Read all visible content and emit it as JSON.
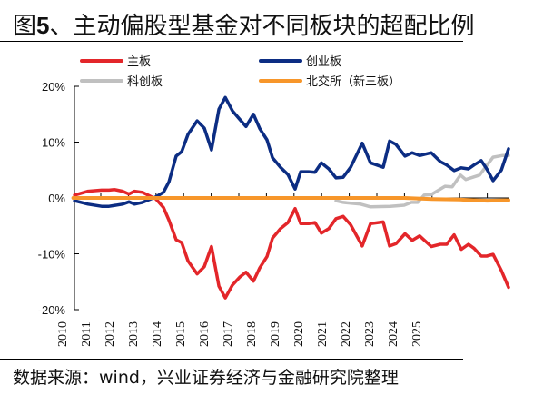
{
  "title_prefix": "图",
  "title_num": "5",
  "title_rest": "、主动偏股型基金对不同板块的超配比例",
  "source": "数据来源：wind，兴业证券经济与金融研究院整理",
  "chart_data": {
    "type": "line",
    "title": "图5、主动偏股型基金对不同板块的超配比例",
    "ylim": [
      -20,
      20
    ],
    "yticks": [
      20,
      10,
      0,
      -10,
      -20
    ],
    "ytick_labels": [
      "20%",
      "10%",
      "0%",
      "-10%",
      "-20%"
    ],
    "xtick_labels": [
      "2010",
      "2011",
      "2012",
      "2013",
      "2014",
      "2015",
      "2016",
      "2017",
      "2018",
      "2019",
      "2020",
      "2021",
      "2022",
      "2023",
      "2024",
      "2025"
    ],
    "xlim": [
      2010,
      2025.8
    ],
    "grid": false,
    "legend_placement": "top",
    "series": [
      {
        "name": "主板",
        "color": "#e3262a",
        "x": [
          2010.05,
          2010.54,
          2011.03,
          2011.3,
          2011.5,
          2011.79,
          2012.02,
          2012.22,
          2012.51,
          2013.0,
          2013.27,
          2013.47,
          2013.73,
          2013.93,
          2014.16,
          2014.49,
          2014.75,
          2015.01,
          2015.28,
          2015.51,
          2015.77,
          2016.03,
          2016.26,
          2016.53,
          2016.76,
          2017.02,
          2017.22,
          2017.51,
          2017.78,
          2018.04,
          2018.24,
          2018.53,
          2018.76,
          2018.99,
          2019.26,
          2019.52,
          2019.78,
          2020.05,
          2020.47,
          2020.77,
          2021.23,
          2021.46,
          2021.69,
          2022.02,
          2022.28,
          2022.55,
          2022.97,
          2023.3,
          2023.53,
          2023.8,
          2024.06,
          2024.32,
          2024.52,
          2024.78,
          2024.98,
          2025.21,
          2025.51,
          2025.77
        ],
        "y": [
          0.5,
          1.2,
          1.4,
          1.4,
          1.5,
          1.2,
          0.7,
          1.2,
          1.0,
          -0.2,
          -1.7,
          -4.0,
          -7.5,
          -8.0,
          -11.3,
          -13.6,
          -12.3,
          -8.7,
          -15.8,
          -17.9,
          -15.6,
          -14.2,
          -13.3,
          -14.9,
          -12.5,
          -10.5,
          -7.2,
          -5.5,
          -4.4,
          -1.9,
          -4.6,
          -4.6,
          -4.4,
          -6.3,
          -5.5,
          -3.7,
          -3.3,
          -4.8,
          -8.6,
          -4.6,
          -4.3,
          -8.6,
          -8.2,
          -6.4,
          -7.6,
          -6.8,
          -8.7,
          -8.3,
          -8.3,
          -6.6,
          -9.2,
          -8.3,
          -9.0,
          -10.4,
          -10.4,
          -10.1,
          -13.0,
          -16.0
        ]
      },
      {
        "name": "创业板",
        "color": "#0c2d83",
        "x": [
          2010.05,
          2010.54,
          2011.03,
          2011.3,
          2011.79,
          2012.02,
          2012.22,
          2012.51,
          2013.0,
          2013.27,
          2013.47,
          2013.73,
          2013.93,
          2014.16,
          2014.49,
          2014.75,
          2015.01,
          2015.28,
          2015.51,
          2015.77,
          2016.03,
          2016.26,
          2016.53,
          2016.76,
          2017.02,
          2017.22,
          2017.51,
          2017.78,
          2018.04,
          2018.24,
          2018.53,
          2018.76,
          2018.99,
          2019.26,
          2019.52,
          2019.78,
          2020.05,
          2020.47,
          2020.77,
          2021.23,
          2021.46,
          2021.69,
          2022.02,
          2022.28,
          2022.55,
          2022.97,
          2023.3,
          2023.53,
          2023.8,
          2024.06,
          2024.32,
          2024.52,
          2024.78,
          2024.98,
          2025.21,
          2025.51,
          2025.77
        ],
        "y": [
          -0.5,
          -1.1,
          -1.5,
          -1.5,
          -1.1,
          -0.7,
          -1.1,
          -0.8,
          0.2,
          1.0,
          2.9,
          7.5,
          8.3,
          11.4,
          13.8,
          12.5,
          8.6,
          15.9,
          18.0,
          15.6,
          14.1,
          12.8,
          15.0,
          12.4,
          10.4,
          7.2,
          5.5,
          4.2,
          1.6,
          4.7,
          4.7,
          4.6,
          6.3,
          5.2,
          3.6,
          3.7,
          5.5,
          9.8,
          6.3,
          5.5,
          10.2,
          9.6,
          7.5,
          8.1,
          7.6,
          8.1,
          6.5,
          5.9,
          4.9,
          5.4,
          5.2,
          5.9,
          6.7,
          5.2,
          3.1,
          5.0,
          8.8
        ]
      },
      {
        "name": "科创板",
        "color": "#c0c0c0",
        "x": [
          2019.52,
          2019.78,
          2020.41,
          2020.77,
          2021.49,
          2021.99,
          2022.25,
          2022.48,
          2022.71,
          2022.97,
          2023.47,
          2023.73,
          2024.03,
          2024.22,
          2024.72,
          2025.21,
          2025.54,
          2025.77
        ],
        "y": [
          -0.5,
          -0.8,
          -1.1,
          -1.6,
          -1.5,
          -1.3,
          -0.8,
          -0.8,
          0.5,
          0.6,
          2.1,
          2.0,
          4.1,
          3.3,
          4.1,
          7.3,
          7.6,
          7.6
        ]
      },
      {
        "name": "北交所（新三板）",
        "color": "#f7962a",
        "x": [
          2010.0,
          2015.0,
          2020.0,
          2022.0,
          2023.0,
          2024.0,
          2024.5,
          2025.0,
          2025.77
        ],
        "y": [
          0.0,
          0.0,
          0.0,
          0.0,
          -0.2,
          -0.3,
          -0.4,
          -0.5,
          -0.4
        ]
      }
    ]
  }
}
